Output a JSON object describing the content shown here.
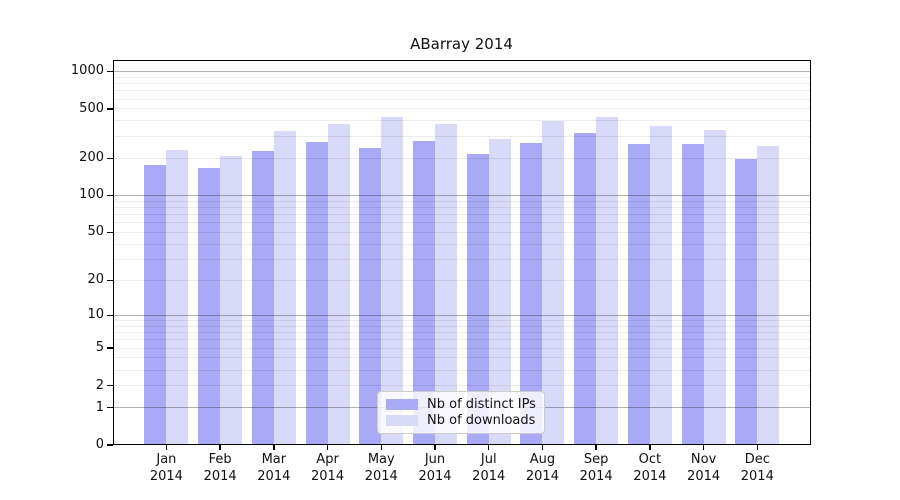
{
  "title": "ABarray 2014",
  "colors": {
    "bar_distinct_ips": "#a9a9f5",
    "bar_downloads": "#d9d9fa",
    "grid_major": "rgba(0,0,0,0.30)",
    "grid_minor": "rgba(0,0,0,0.08)",
    "axis": "#000000",
    "text": "#111111",
    "legend_bg": "rgba(255,255,255,0.8)",
    "legend_border": "#cccccc"
  },
  "legend": {
    "position": "lower center"
  },
  "chart_data": {
    "type": "bar",
    "title": "ABarray 2014",
    "categories": [
      "Jan 2014",
      "Feb 2014",
      "Mar 2014",
      "Apr 2014",
      "May 2014",
      "Jun 2014",
      "Jul 2014",
      "Aug 2014",
      "Sep 2014",
      "Oct 2014",
      "Nov 2014",
      "Dec 2014"
    ],
    "series": [
      {
        "name": "Nb of distinct IPs",
        "values": [
          178,
          166,
          230,
          270,
          243,
          276,
          218,
          264,
          321,
          259,
          259,
          198
        ]
      },
      {
        "name": "Nb of downloads",
        "values": [
          234,
          210,
          334,
          380,
          432,
          376,
          286,
          402,
          430,
          362,
          340,
          251
        ]
      }
    ],
    "xlabel": "",
    "ylabel": "",
    "yscale": "log1p",
    "yticks": [
      0,
      1,
      2,
      5,
      10,
      20,
      50,
      100,
      200,
      500,
      1000
    ],
    "ylim": [
      0,
      1225
    ],
    "grid": "on",
    "legend_entries": [
      "Nb of distinct IPs",
      "Nb of downloads"
    ]
  }
}
